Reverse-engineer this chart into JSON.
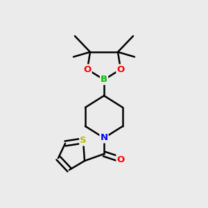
{
  "background_color": "#ebebeb",
  "bond_color": "#000000",
  "atom_colors": {
    "O": "#ff0000",
    "B": "#00bb00",
    "N": "#0000ff",
    "S": "#bbbb00",
    "C": "#000000"
  },
  "bond_width": 1.8,
  "font_size": 9.5
}
